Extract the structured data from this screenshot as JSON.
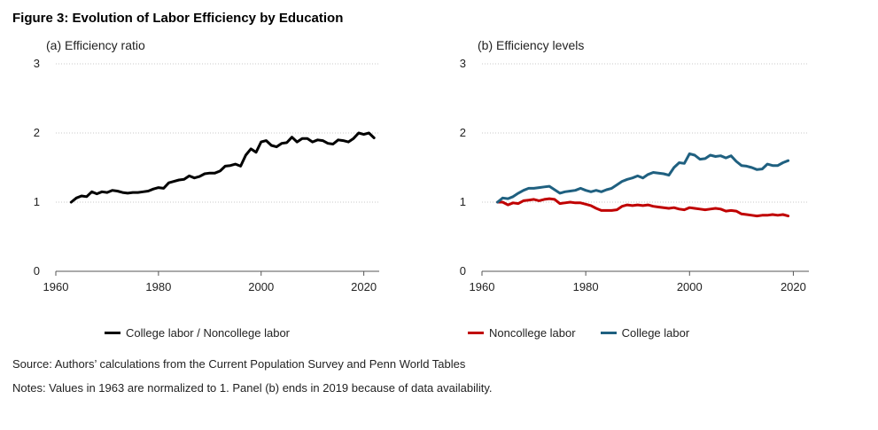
{
  "figure_title": "Figure 3: Evolution of Labor Efficiency by Education",
  "source": "Source: Authors’ calculations from the Current Population Survey and Penn World Tables",
  "notes": "Notes: Values in 1963 are normalized to 1. Panel (b) ends in 2019 because of data availability.",
  "colors": {
    "ratio": "#000000",
    "noncollege": "#c00000",
    "college": "#1f6080"
  },
  "chart_data": [
    {
      "type": "line",
      "title": "(a) Efficiency ratio",
      "xlabel": "",
      "ylabel": "",
      "xlim": [
        1960,
        2023
      ],
      "ylim": [
        0,
        3
      ],
      "xticks": [
        1960,
        1980,
        2000,
        2020
      ],
      "yticks": [
        0,
        1,
        2,
        3
      ],
      "grid": true,
      "legend_position": "bottom",
      "series": [
        {
          "name": "College labor / Noncollege labor",
          "color": "#000000",
          "x": [
            1963,
            1964,
            1965,
            1966,
            1967,
            1968,
            1969,
            1970,
            1971,
            1972,
            1973,
            1974,
            1975,
            1976,
            1977,
            1978,
            1979,
            1980,
            1981,
            1982,
            1983,
            1984,
            1985,
            1986,
            1987,
            1988,
            1989,
            1990,
            1991,
            1992,
            1993,
            1994,
            1995,
            1996,
            1997,
            1998,
            1999,
            2000,
            2001,
            2002,
            2003,
            2004,
            2005,
            2006,
            2007,
            2008,
            2009,
            2010,
            2011,
            2012,
            2013,
            2014,
            2015,
            2016,
            2017,
            2018,
            2019,
            2020,
            2021,
            2022
          ],
          "values": [
            1.0,
            1.06,
            1.09,
            1.08,
            1.15,
            1.12,
            1.15,
            1.14,
            1.17,
            1.16,
            1.14,
            1.13,
            1.14,
            1.14,
            1.15,
            1.16,
            1.19,
            1.21,
            1.2,
            1.28,
            1.3,
            1.32,
            1.33,
            1.38,
            1.35,
            1.37,
            1.41,
            1.42,
            1.42,
            1.45,
            1.52,
            1.53,
            1.55,
            1.52,
            1.68,
            1.77,
            1.72,
            1.87,
            1.89,
            1.82,
            1.8,
            1.85,
            1.86,
            1.94,
            1.87,
            1.92,
            1.92,
            1.87,
            1.9,
            1.89,
            1.85,
            1.84,
            1.9,
            1.89,
            1.87,
            1.92,
            2.0,
            1.98,
            2.0,
            1.93
          ]
        }
      ]
    },
    {
      "type": "line",
      "title": "(b) Efficiency levels",
      "xlabel": "",
      "ylabel": "",
      "xlim": [
        1960,
        2023
      ],
      "ylim": [
        0,
        3
      ],
      "xticks": [
        1960,
        1980,
        2000,
        2020
      ],
      "yticks": [
        0,
        1,
        2,
        3
      ],
      "grid": true,
      "legend_position": "bottom",
      "series": [
        {
          "name": "Noncollege labor",
          "color": "#c00000",
          "x": [
            1963,
            1964,
            1965,
            1966,
            1967,
            1968,
            1969,
            1970,
            1971,
            1972,
            1973,
            1974,
            1975,
            1976,
            1977,
            1978,
            1979,
            1980,
            1981,
            1982,
            1983,
            1984,
            1985,
            1986,
            1987,
            1988,
            1989,
            1990,
            1991,
            1992,
            1993,
            1994,
            1995,
            1996,
            1997,
            1998,
            1999,
            2000,
            2001,
            2002,
            2003,
            2004,
            2005,
            2006,
            2007,
            2008,
            2009,
            2010,
            2011,
            2012,
            2013,
            2014,
            2015,
            2016,
            2017,
            2018,
            2019
          ],
          "values": [
            1.0,
            1.0,
            0.96,
            0.99,
            0.98,
            1.02,
            1.03,
            1.04,
            1.02,
            1.04,
            1.05,
            1.04,
            0.98,
            0.99,
            1.0,
            0.99,
            0.99,
            0.97,
            0.95,
            0.91,
            0.88,
            0.88,
            0.88,
            0.89,
            0.94,
            0.96,
            0.95,
            0.96,
            0.95,
            0.96,
            0.94,
            0.93,
            0.92,
            0.91,
            0.92,
            0.9,
            0.89,
            0.92,
            0.91,
            0.9,
            0.89,
            0.9,
            0.91,
            0.9,
            0.87,
            0.88,
            0.87,
            0.83,
            0.82,
            0.81,
            0.8,
            0.81,
            0.81,
            0.82,
            0.81,
            0.82,
            0.8
          ]
        },
        {
          "name": "College labor",
          "color": "#1f6080",
          "x": [
            1963,
            1964,
            1965,
            1966,
            1967,
            1968,
            1969,
            1970,
            1971,
            1972,
            1973,
            1974,
            1975,
            1976,
            1977,
            1978,
            1979,
            1980,
            1981,
            1982,
            1983,
            1984,
            1985,
            1986,
            1987,
            1988,
            1989,
            1990,
            1991,
            1992,
            1993,
            1994,
            1995,
            1996,
            1997,
            1998,
            1999,
            2000,
            2001,
            2002,
            2003,
            2004,
            2005,
            2006,
            2007,
            2008,
            2009,
            2010,
            2011,
            2012,
            2013,
            2014,
            2015,
            2016,
            2017,
            2018,
            2019
          ],
          "values": [
            1.0,
            1.06,
            1.05,
            1.08,
            1.13,
            1.17,
            1.2,
            1.2,
            1.21,
            1.22,
            1.23,
            1.18,
            1.13,
            1.15,
            1.16,
            1.17,
            1.2,
            1.17,
            1.15,
            1.17,
            1.15,
            1.18,
            1.2,
            1.25,
            1.3,
            1.33,
            1.35,
            1.38,
            1.35,
            1.4,
            1.43,
            1.42,
            1.41,
            1.39,
            1.5,
            1.57,
            1.56,
            1.7,
            1.68,
            1.62,
            1.63,
            1.68,
            1.66,
            1.67,
            1.64,
            1.67,
            1.59,
            1.53,
            1.52,
            1.5,
            1.47,
            1.48,
            1.55,
            1.53,
            1.53,
            1.57,
            1.6
          ]
        }
      ]
    }
  ]
}
